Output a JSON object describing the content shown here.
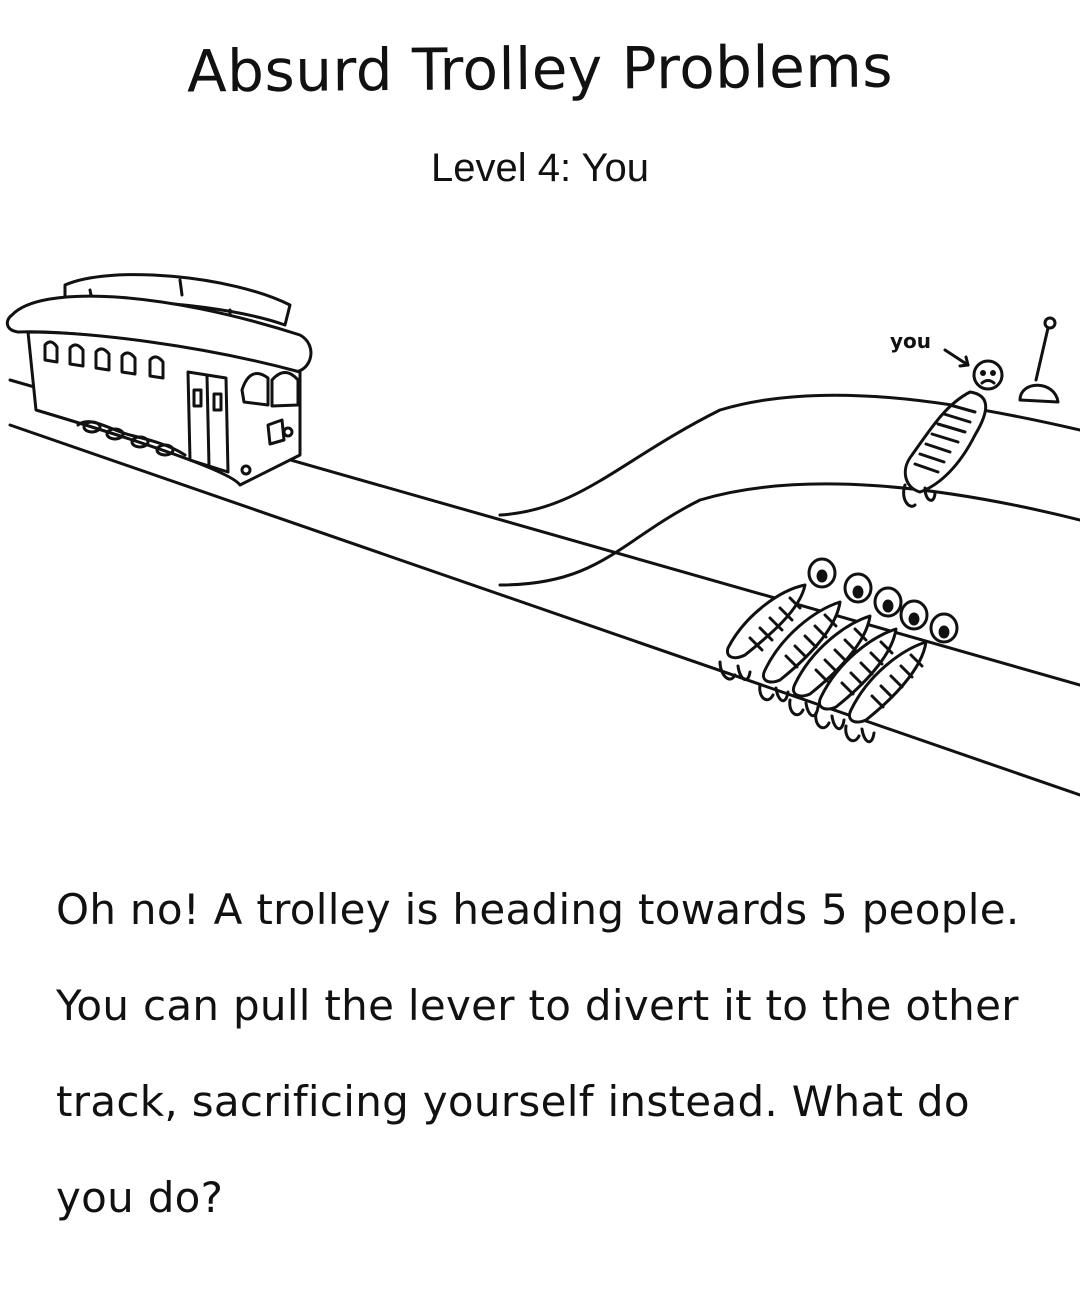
{
  "header": {
    "title": "Absurd Trolley Problems",
    "subtitle": "Level 4: You"
  },
  "scene": {
    "you_label": "you",
    "icons": {
      "trolley": "trolley-icon",
      "lever": "lever-icon",
      "you_person": "tied-person-icon",
      "group": "five-tied-people-icon"
    },
    "people_on_main_track": 5,
    "people_on_side_track": 1
  },
  "question": {
    "text": "Oh no! A trolley is heading towards 5 people. You can pull the lever to divert it to the other track, sacrificing yourself instead. What do you do?"
  }
}
